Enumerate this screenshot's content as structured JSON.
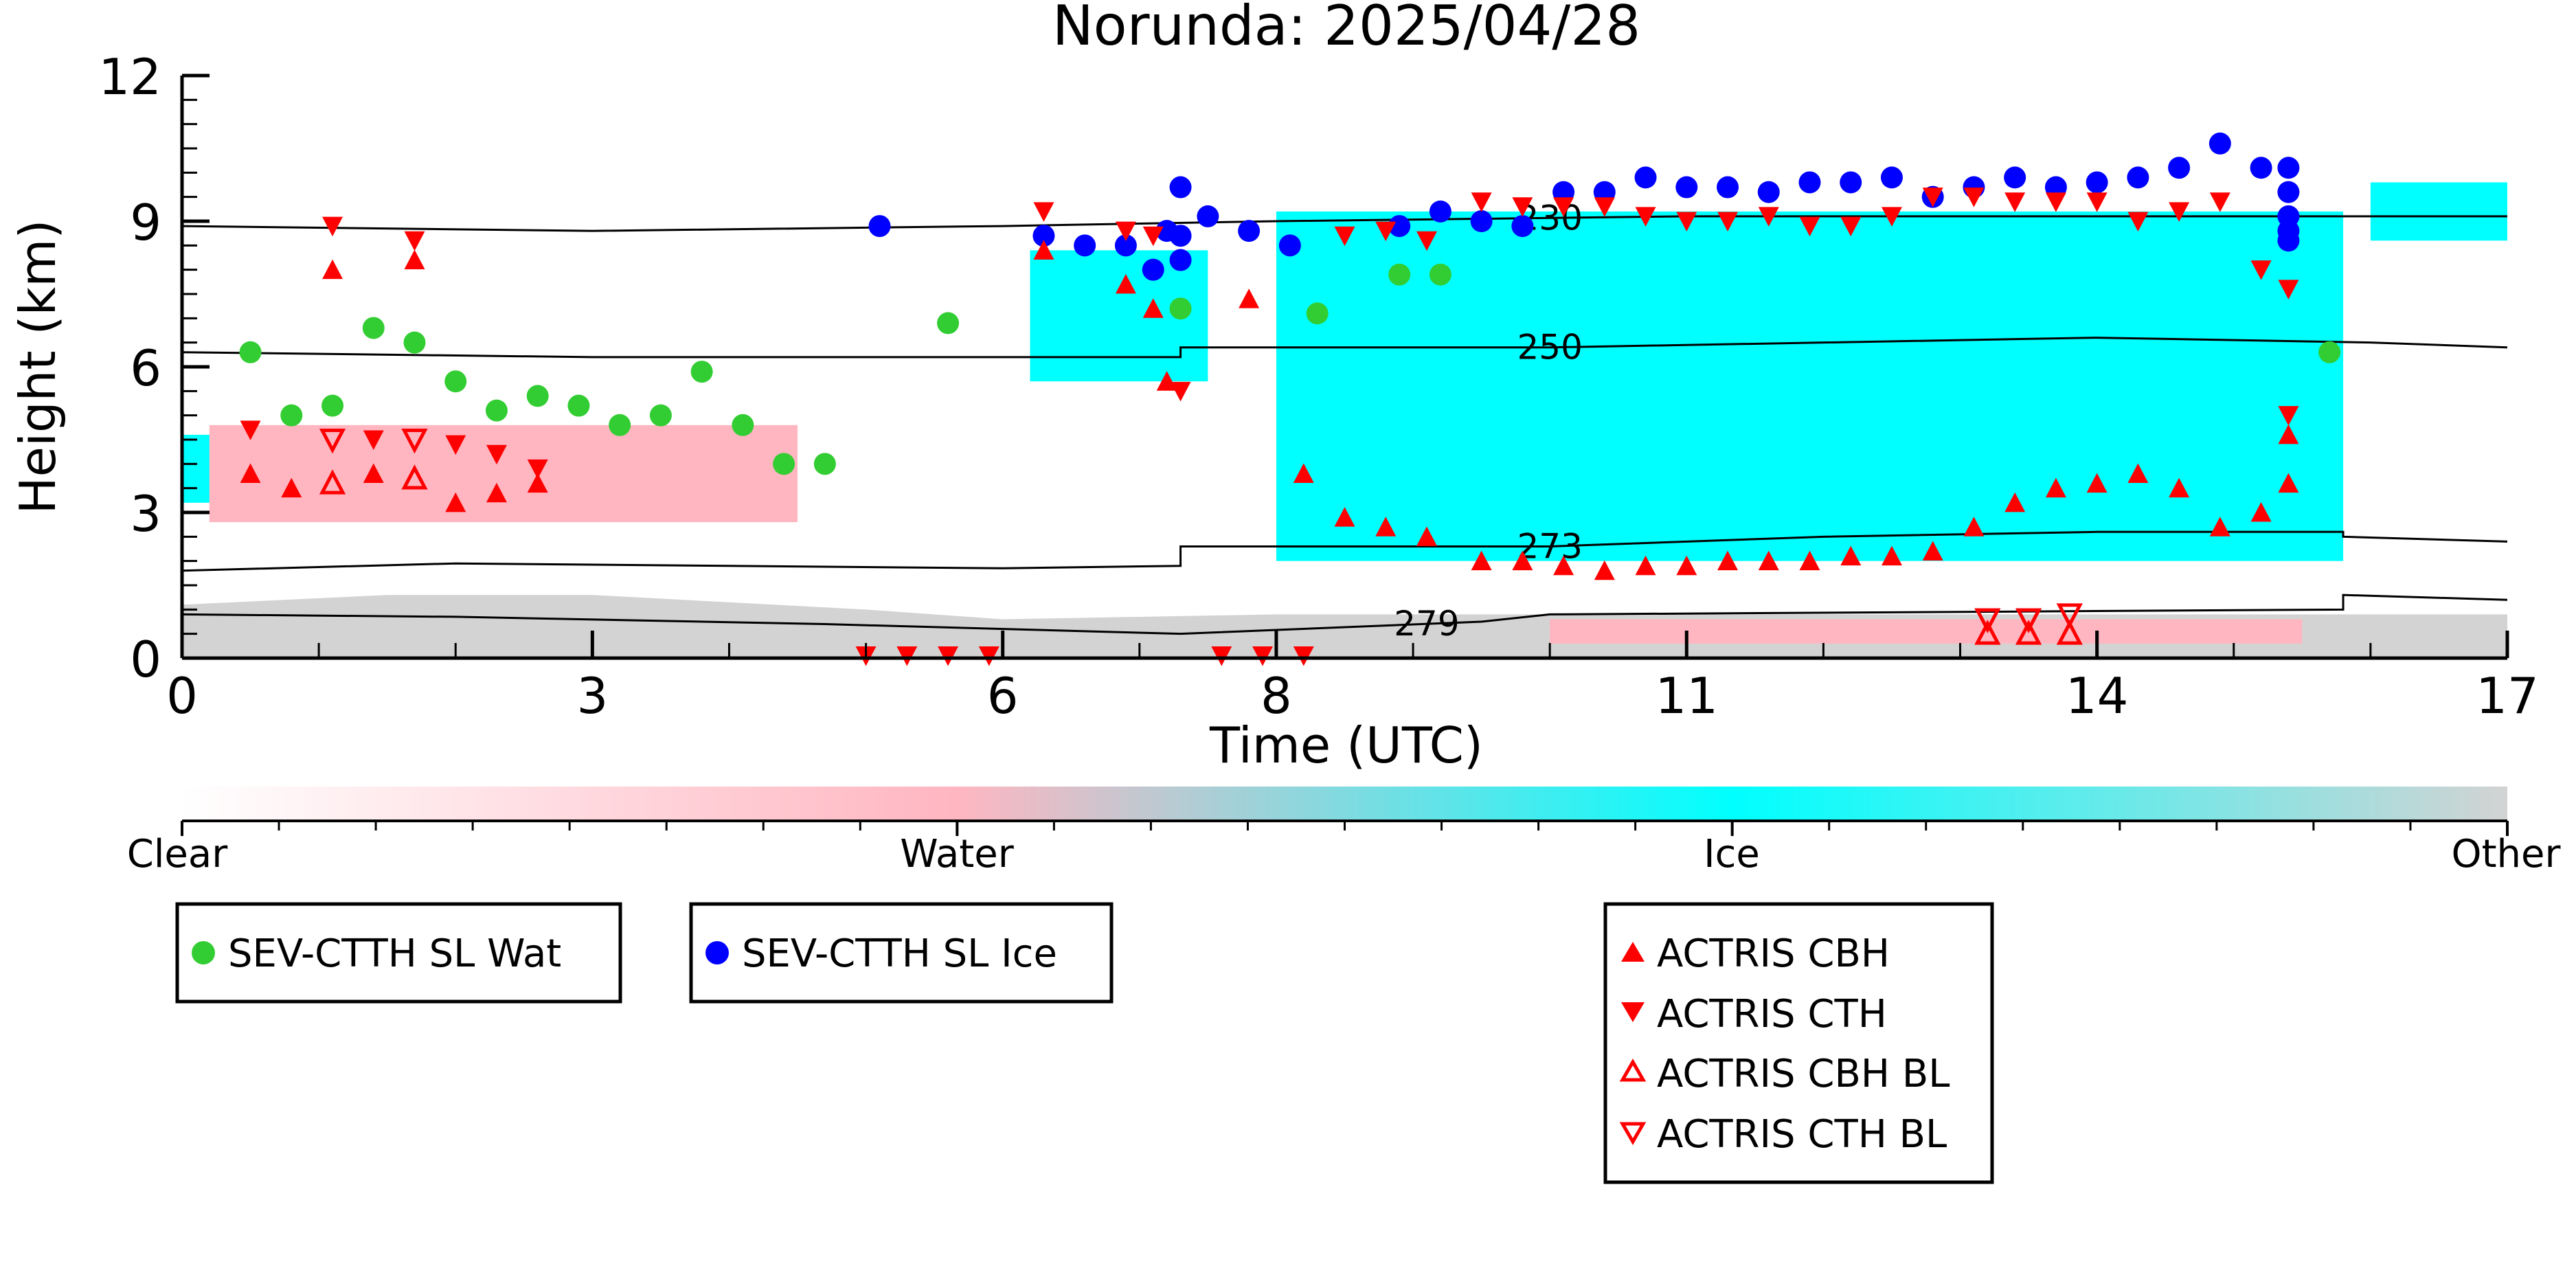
{
  "chart_data": {
    "type": "scatter",
    "title": "Norunda: 2025/04/28",
    "xlabel": "Time (UTC)",
    "ylabel": "Height (km)",
    "xlim": [
      0,
      17
    ],
    "ylim": [
      0,
      12
    ],
    "xticks": [
      0,
      3,
      6,
      8,
      11,
      14,
      17
    ],
    "yticks": [
      0,
      3,
      6,
      9,
      12
    ],
    "grid": false,
    "background_classification": {
      "description_hidden": true,
      "colorbar_labels": [
        "Clear",
        "Water",
        "Ice",
        "Other"
      ],
      "colors": {
        "clear": "#ffffff",
        "water": "#ffb6c1",
        "ice": "#00ffff",
        "other": "#d3d3d3"
      },
      "regions": [
        {
          "class": "other",
          "x": [
            0.0,
            17.0
          ],
          "y_top_profile": [
            [
              0,
              1.1
            ],
            [
              1.5,
              1.3
            ],
            [
              3,
              1.3
            ],
            [
              5,
              1.0
            ],
            [
              6,
              0.8
            ],
            [
              8,
              0.9
            ],
            [
              9.5,
              0.9
            ],
            [
              10,
              0.9
            ],
            [
              13,
              0.9
            ],
            [
              15,
              0.9
            ],
            [
              17,
              0.9
            ]
          ]
        },
        {
          "class": "ice",
          "x": [
            8.0,
            15.8
          ],
          "y_top": 9.2,
          "y_bottom": 2.0
        },
        {
          "class": "ice",
          "x": [
            0.0,
            2.8
          ],
          "y_top": 4.6,
          "y_bottom": 3.2
        },
        {
          "class": "ice",
          "x": [
            6.2,
            7.5
          ],
          "y_top": 8.4,
          "y_bottom": 5.7
        },
        {
          "class": "water",
          "x": [
            0.2,
            4.5
          ],
          "y_top": 4.8,
          "y_bottom": 2.8
        },
        {
          "class": "water",
          "x": [
            10.0,
            15.5
          ],
          "y_top": 0.8,
          "y_bottom": 0.3
        },
        {
          "class": "ice",
          "x": [
            16.0,
            17.0
          ],
          "y_top": 9.8,
          "y_bottom": 8.6
        }
      ]
    },
    "isotherms": [
      {
        "label": "230",
        "label_x": 10.0,
        "points": [
          [
            0,
            8.9
          ],
          [
            3,
            8.8
          ],
          [
            6,
            8.9
          ],
          [
            8,
            9.0
          ],
          [
            11,
            9.1
          ],
          [
            14,
            9.1
          ],
          [
            17,
            9.1
          ]
        ]
      },
      {
        "label": "250",
        "label_x": 10.0,
        "points": [
          [
            0,
            6.3
          ],
          [
            3,
            6.2
          ],
          [
            6,
            6.2
          ],
          [
            7.3,
            6.2
          ],
          [
            7.3,
            6.4
          ],
          [
            10,
            6.4
          ],
          [
            12,
            6.5
          ],
          [
            14,
            6.6
          ],
          [
            16,
            6.5
          ],
          [
            17,
            6.4
          ]
        ]
      },
      {
        "label": "273",
        "label_x": 10.0,
        "points": [
          [
            0,
            1.8
          ],
          [
            2,
            1.95
          ],
          [
            4,
            1.9
          ],
          [
            6,
            1.85
          ],
          [
            7.3,
            1.9
          ],
          [
            7.3,
            2.3
          ],
          [
            10,
            2.3
          ],
          [
            12,
            2.5
          ],
          [
            14,
            2.6
          ],
          [
            15.8,
            2.6
          ],
          [
            15.8,
            2.5
          ],
          [
            17,
            2.4
          ]
        ]
      },
      {
        "label": "279",
        "label_x": 9.1,
        "points": [
          [
            0,
            0.9
          ],
          [
            2,
            0.85
          ],
          [
            4.7,
            0.7
          ],
          [
            7.3,
            0.5
          ],
          [
            9.5,
            0.75
          ],
          [
            10,
            0.9
          ],
          [
            15.8,
            1.0
          ],
          [
            15.8,
            1.3
          ],
          [
            17,
            1.2
          ]
        ]
      }
    ],
    "series": [
      {
        "name": "SEV-CTTH SL Wat",
        "marker": "circle",
        "color": "#32cd32",
        "points": [
          [
            0.5,
            6.3
          ],
          [
            0.8,
            5.0
          ],
          [
            1.1,
            5.2
          ],
          [
            1.4,
            6.8
          ],
          [
            1.7,
            6.5
          ],
          [
            2.0,
            5.7
          ],
          [
            2.3,
            5.1
          ],
          [
            2.6,
            5.4
          ],
          [
            2.9,
            5.2
          ],
          [
            3.2,
            4.8
          ],
          [
            3.5,
            5.0
          ],
          [
            3.8,
            5.9
          ],
          [
            4.1,
            4.8
          ],
          [
            4.4,
            4.0
          ],
          [
            4.7,
            4.0
          ],
          [
            5.6,
            6.9
          ],
          [
            7.3,
            7.2
          ],
          [
            8.3,
            7.1
          ],
          [
            8.9,
            7.9
          ],
          [
            9.2,
            7.9
          ],
          [
            15.7,
            6.3
          ]
        ]
      },
      {
        "name": "SEV-CTTH SL Ice",
        "marker": "circle",
        "color": "#0000ff",
        "points": [
          [
            5.1,
            8.9
          ],
          [
            6.3,
            8.7
          ],
          [
            6.6,
            8.5
          ],
          [
            6.9,
            8.5
          ],
          [
            7.1,
            8.0
          ],
          [
            7.2,
            8.8
          ],
          [
            7.3,
            8.7
          ],
          [
            7.3,
            8.2
          ],
          [
            7.3,
            9.7
          ],
          [
            7.5,
            9.1
          ],
          [
            7.8,
            8.8
          ],
          [
            8.1,
            8.5
          ],
          [
            8.9,
            8.9
          ],
          [
            9.2,
            9.2
          ],
          [
            9.5,
            9.0
          ],
          [
            9.8,
            8.9
          ],
          [
            10.1,
            9.6
          ],
          [
            10.4,
            9.6
          ],
          [
            10.7,
            9.9
          ],
          [
            11.0,
            9.7
          ],
          [
            11.3,
            9.7
          ],
          [
            11.6,
            9.6
          ],
          [
            11.9,
            9.8
          ],
          [
            12.2,
            9.8
          ],
          [
            12.5,
            9.9
          ],
          [
            12.8,
            9.5
          ],
          [
            13.1,
            9.7
          ],
          [
            13.4,
            9.9
          ],
          [
            13.7,
            9.7
          ],
          [
            14.0,
            9.8
          ],
          [
            14.3,
            9.9
          ],
          [
            14.6,
            10.1
          ],
          [
            14.9,
            10.6
          ],
          [
            15.2,
            10.1
          ],
          [
            15.4,
            10.1
          ],
          [
            15.4,
            9.6
          ],
          [
            15.4,
            9.1
          ],
          [
            15.4,
            8.8
          ],
          [
            15.4,
            8.6
          ]
        ]
      },
      {
        "name": "ACTRIS CBH",
        "marker": "triangle-up",
        "filled": true,
        "color": "#ff0000",
        "points": [
          [
            0.5,
            3.8
          ],
          [
            0.8,
            3.5
          ],
          [
            1.1,
            8.0
          ],
          [
            1.4,
            3.8
          ],
          [
            1.7,
            8.2
          ],
          [
            2.0,
            3.2
          ],
          [
            2.3,
            3.4
          ],
          [
            2.6,
            3.6
          ],
          [
            6.3,
            8.4
          ],
          [
            6.9,
            7.7
          ],
          [
            7.1,
            7.2
          ],
          [
            7.2,
            5.7
          ],
          [
            7.8,
            7.4
          ],
          [
            8.2,
            3.8
          ],
          [
            8.5,
            2.9
          ],
          [
            8.8,
            2.7
          ],
          [
            9.1,
            2.5
          ],
          [
            9.5,
            2.0
          ],
          [
            9.8,
            2.0
          ],
          [
            10.1,
            1.9
          ],
          [
            10.4,
            1.8
          ],
          [
            10.7,
            1.9
          ],
          [
            11.0,
            1.9
          ],
          [
            11.3,
            2.0
          ],
          [
            11.6,
            2.0
          ],
          [
            11.9,
            2.0
          ],
          [
            12.2,
            2.1
          ],
          [
            12.5,
            2.1
          ],
          [
            12.8,
            2.2
          ],
          [
            13.1,
            2.7
          ],
          [
            13.4,
            3.2
          ],
          [
            13.7,
            3.5
          ],
          [
            14.0,
            3.6
          ],
          [
            14.3,
            3.8
          ],
          [
            14.6,
            3.5
          ],
          [
            14.9,
            2.7
          ],
          [
            15.2,
            3.0
          ],
          [
            15.4,
            3.6
          ],
          [
            15.4,
            4.6
          ]
        ]
      },
      {
        "name": "ACTRIS CTH",
        "marker": "triangle-down",
        "filled": true,
        "color": "#ff0000",
        "points": [
          [
            0.5,
            4.7
          ],
          [
            1.1,
            8.9
          ],
          [
            1.4,
            4.5
          ],
          [
            1.7,
            8.6
          ],
          [
            2.0,
            4.4
          ],
          [
            2.3,
            4.2
          ],
          [
            2.6,
            3.9
          ],
          [
            5.0,
            0.05
          ],
          [
            5.3,
            0.05
          ],
          [
            5.6,
            0.05
          ],
          [
            5.9,
            0.05
          ],
          [
            6.3,
            9.2
          ],
          [
            6.9,
            8.8
          ],
          [
            7.1,
            8.7
          ],
          [
            7.3,
            5.5
          ],
          [
            7.6,
            0.05
          ],
          [
            7.9,
            0.05
          ],
          [
            8.2,
            0.05
          ],
          [
            8.5,
            8.7
          ],
          [
            8.8,
            8.8
          ],
          [
            9.1,
            8.6
          ],
          [
            9.5,
            9.4
          ],
          [
            9.8,
            9.3
          ],
          [
            10.1,
            9.3
          ],
          [
            10.4,
            9.3
          ],
          [
            10.7,
            9.1
          ],
          [
            11.0,
            9.0
          ],
          [
            11.3,
            9.0
          ],
          [
            11.6,
            9.1
          ],
          [
            11.9,
            8.9
          ],
          [
            12.2,
            8.9
          ],
          [
            12.5,
            9.1
          ],
          [
            12.8,
            9.5
          ],
          [
            13.1,
            9.5
          ],
          [
            13.4,
            9.4
          ],
          [
            13.7,
            9.4
          ],
          [
            14.0,
            9.4
          ],
          [
            14.3,
            9.0
          ],
          [
            14.6,
            9.2
          ],
          [
            14.9,
            9.4
          ],
          [
            15.2,
            8.0
          ],
          [
            15.4,
            7.6
          ],
          [
            15.4,
            5.0
          ]
        ]
      },
      {
        "name": "ACTRIS CBH BL",
        "marker": "triangle-up",
        "filled": false,
        "color": "#ff0000",
        "points": [
          [
            1.1,
            3.6
          ],
          [
            1.7,
            3.7
          ],
          [
            13.2,
            0.5
          ],
          [
            13.5,
            0.5
          ],
          [
            13.8,
            0.5
          ]
        ]
      },
      {
        "name": "ACTRIS CTH BL",
        "marker": "triangle-down",
        "filled": false,
        "color": "#ff0000",
        "points": [
          [
            1.1,
            4.5
          ],
          [
            1.7,
            4.5
          ],
          [
            13.2,
            0.8
          ],
          [
            13.5,
            0.8
          ],
          [
            13.8,
            0.9
          ]
        ]
      }
    ]
  },
  "colorbar": {
    "labels": [
      "Clear",
      "Water",
      "Ice",
      "Other"
    ],
    "stops": [
      "#ffffff",
      "#ffb6c1",
      "#00ffff",
      "#d3d3d3"
    ]
  },
  "legends": {
    "group1": [
      "SEV-CTTH SL Wat"
    ],
    "group2": [
      "SEV-CTTH SL Ice"
    ],
    "group3": [
      "ACTRIS CBH",
      "ACTRIS CTH",
      "ACTRIS CBH BL",
      "ACTRIS CTH BL"
    ]
  }
}
